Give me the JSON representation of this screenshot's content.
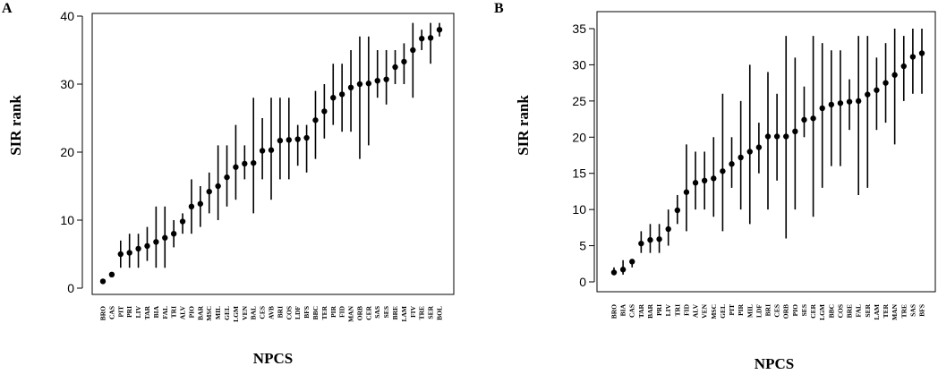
{
  "chart_data": [
    {
      "panel": "A",
      "type": "scatter",
      "style": "point-with-range",
      "xlabel": "NPCS",
      "ylabel": "SIR rank",
      "ylim": [
        0,
        40
      ],
      "yticks": [
        0,
        10,
        20,
        30,
        40
      ],
      "categories": [
        "BRO",
        "CAS",
        "PIT",
        "PRI",
        "LIV",
        "TAR",
        "BIA",
        "FAL",
        "TRI",
        "ALV",
        "PIO",
        "BAR",
        "MSC",
        "MIL",
        "GEL",
        "LGM",
        "VEN",
        "BAL",
        "CES",
        "AVB",
        "BRI",
        "COS",
        "LDF",
        "BFS",
        "BBC",
        "TER",
        "PIR",
        "FID",
        "MAN",
        "ORB",
        "CER",
        "SAS",
        "SES",
        "BRE",
        "LAM",
        "FIV",
        "TRE",
        "SER",
        "BOL"
      ],
      "values": [
        1,
        2,
        5,
        5.2,
        5.8,
        6.2,
        6.8,
        7.4,
        8,
        9.8,
        12,
        12.4,
        14.2,
        15,
        16.3,
        17.8,
        18.3,
        18.4,
        20.2,
        20.3,
        21.7,
        21.8,
        21.9,
        22.1,
        24.7,
        26,
        28,
        28.5,
        29.5,
        30,
        30.1,
        30.5,
        30.7,
        32.5,
        33.3,
        35,
        36.7,
        36.8,
        38
      ],
      "lower": [
        1,
        2,
        3,
        3,
        3,
        4,
        3,
        3,
        6,
        8,
        8,
        9,
        11,
        10,
        12,
        13,
        16,
        11,
        16,
        13,
        16,
        16,
        18,
        17,
        19,
        22,
        24,
        23,
        23,
        19,
        21,
        28,
        27,
        30,
        30,
        28,
        35,
        33,
        37
      ],
      "upper": [
        1,
        2,
        7,
        8,
        8,
        9,
        12,
        12,
        10,
        11,
        16,
        15,
        17,
        21,
        21,
        24,
        21,
        28,
        25,
        28,
        28,
        28,
        24,
        24,
        29,
        30,
        33,
        33,
        35,
        37,
        37,
        35,
        35,
        35,
        36,
        39,
        38,
        39,
        39
      ]
    },
    {
      "panel": "B",
      "type": "scatter",
      "style": "point-with-range",
      "xlabel": "NPCS",
      "ylabel": "SIR rank",
      "ylim": [
        0,
        35
      ],
      "yticks": [
        0,
        5,
        10,
        15,
        20,
        25,
        30,
        35
      ],
      "categories": [
        "BRO",
        "BIA",
        "CAS",
        "TAR",
        "BAR",
        "PRI",
        "LIV",
        "TRI",
        "FID",
        "ALV",
        "VEN",
        "MSC",
        "GEL",
        "PIT",
        "PIR",
        "MIL",
        "LDF",
        "BRI",
        "CES",
        "ORB",
        "PIO",
        "SES",
        "CER",
        "LGM",
        "BBC",
        "COS",
        "BRE",
        "FAL",
        "SER",
        "LAM",
        "TER",
        "MAN",
        "TRE",
        "SAS",
        "BFS"
      ],
      "values": [
        1.3,
        1.7,
        2.8,
        5.3,
        5.8,
        5.9,
        7.3,
        9.9,
        12.4,
        13.7,
        14,
        14.3,
        15.3,
        16.3,
        17.2,
        18,
        18.6,
        20.1,
        20.1,
        20.1,
        20.8,
        22.4,
        22.6,
        24,
        24.5,
        24.7,
        24.9,
        25,
        25.9,
        26.5,
        27.5,
        28.6,
        29.8,
        31.1,
        31.6
      ],
      "lower": [
        1,
        1,
        2,
        4,
        4,
        4,
        5,
        8,
        7,
        10,
        10,
        9,
        7,
        13,
        10,
        8,
        15,
        10,
        14,
        6,
        10,
        20,
        9,
        13,
        16,
        16,
        21,
        12,
        13,
        21,
        22,
        19,
        25,
        26,
        26
      ],
      "upper": [
        2,
        3,
        3,
        7,
        8,
        8,
        10,
        12,
        19,
        18,
        18,
        20,
        26,
        20,
        25,
        30,
        22,
        29,
        26,
        34,
        31,
        27,
        34,
        33,
        32,
        32,
        28,
        34,
        34,
        31,
        33,
        35,
        34,
        35,
        35
      ]
    }
  ],
  "panels": [
    {
      "label": "A",
      "xlabel": "NPCS",
      "ylabel": "SIR rank"
    },
    {
      "label": "B",
      "xlabel": "NPCS",
      "ylabel": "SIR rank"
    }
  ],
  "colors": {
    "marks": "#000000",
    "background": "#ffffff"
  }
}
